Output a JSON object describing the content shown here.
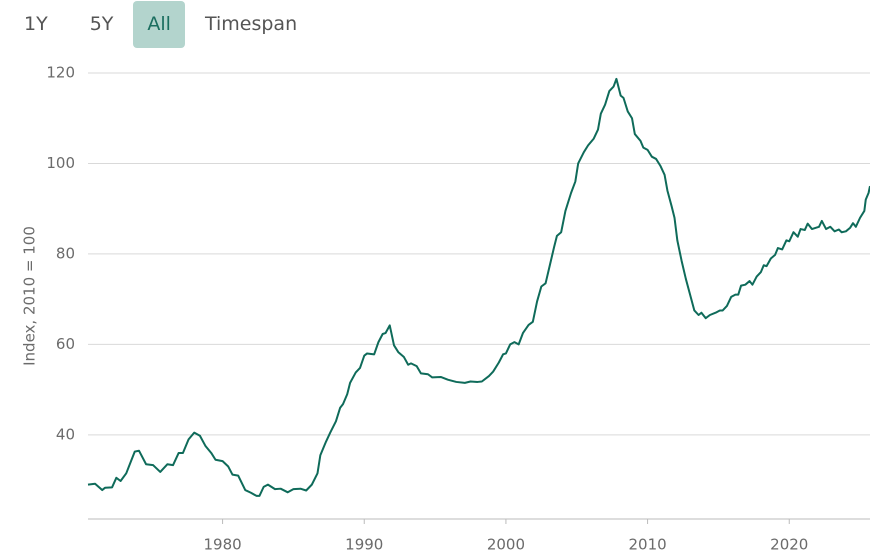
{
  "buttons": [
    "1Y",
    "5Y",
    "All",
    "Timespan"
  ],
  "active_button": 2,
  "chart_data": {
    "type": "line",
    "y_label": "Index, 2010 = 100",
    "color": "#0f6b5a",
    "grid": true,
    "xlim": [
      1970.5,
      2025.7
    ],
    "xticks": [
      1980,
      1990,
      2000,
      2010,
      2020
    ],
    "ylim": [
      21.4,
      120
    ],
    "yticks": [
      40,
      60,
      80,
      100,
      120
    ],
    "x": [
      1970.5,
      1971.0,
      1971.5,
      1971.7,
      1972.2,
      1972.5,
      1972.8,
      1973.2,
      1973.8,
      1974.1,
      1974.6,
      1975.1,
      1975.6,
      1976.1,
      1976.5,
      1976.9,
      1977.2,
      1977.6,
      1978.0,
      1978.4,
      1978.8,
      1979.2,
      1979.5,
      1980.0,
      1980.4,
      1980.7,
      1981.1,
      1981.6,
      1982.0,
      1982.4,
      1982.6,
      1982.9,
      1983.2,
      1983.7,
      1984.1,
      1984.6,
      1985.0,
      1985.5,
      1985.9,
      1986.3,
      1986.7,
      1986.9,
      1987.3,
      1987.6,
      1988.0,
      1988.3,
      1988.5,
      1988.8,
      1989.0,
      1989.4,
      1989.7,
      1990.0,
      1990.2,
      1990.7,
      1991.0,
      1991.3,
      1991.5,
      1991.8,
      1992.1,
      1992.4,
      1992.8,
      1993.1,
      1993.3,
      1993.7,
      1994.0,
      1994.5,
      1994.8,
      1995.4,
      1995.9,
      1996.5,
      1997.1,
      1997.5,
      1998.0,
      1998.3,
      1998.8,
      1999.1,
      1999.5,
      1999.8,
      2000.0,
      2000.3,
      2000.6,
      2000.9,
      2001.2,
      2001.6,
      2001.9,
      2002.2,
      2002.5,
      2002.8,
      2003.1,
      2003.4,
      2003.6,
      2003.9,
      2004.2,
      2004.6,
      2004.9,
      2005.1,
      2005.5,
      2005.8,
      2006.2,
      2006.5,
      2006.7,
      2007.0,
      2007.3,
      2007.6,
      2007.8,
      2008.1,
      2008.3,
      2008.6,
      2008.9,
      2009.1,
      2009.5,
      2009.7,
      2010.0,
      2010.3,
      2010.6,
      2010.9,
      2011.2,
      2011.4,
      2011.7,
      2011.9,
      2012.1,
      2012.4,
      2012.7,
      2013.0,
      2013.3,
      2013.6,
      2013.8,
      2014.1,
      2014.4,
      2014.8,
      2015.1,
      2015.3,
      2015.6,
      2015.9,
      2016.2,
      2016.4,
      2016.6,
      2016.9,
      2017.2,
      2017.4,
      2017.7,
      2018.0,
      2018.2,
      2018.4,
      2018.7,
      2019.0,
      2019.2,
      2019.5,
      2019.8,
      2020.0,
      2020.3,
      2020.6,
      2020.8,
      2021.1,
      2021.3,
      2021.6,
      2021.9,
      2022.1,
      2022.3,
      2022.6,
      2022.9,
      2023.2,
      2023.5,
      2023.7,
      2024.0,
      2024.3,
      2024.5,
      2024.7,
      2025.0,
      2025.3,
      2025.4,
      2025.6,
      2025.7
    ],
    "values": [
      29,
      29.2,
      27.8,
      28.3,
      28.4,
      30.5,
      29.8,
      31.5,
      36.3,
      36.5,
      33.5,
      33.3,
      31.8,
      33.5,
      33.3,
      36,
      36,
      39,
      40.5,
      39.8,
      37.5,
      36,
      34.5,
      34.2,
      33,
      31.2,
      31,
      27.8,
      27.2,
      26.5,
      26.5,
      28.5,
      29,
      28,
      28.1,
      27.3,
      28,
      28.1,
      27.7,
      29,
      31.5,
      35.5,
      38.5,
      40.5,
      43,
      46,
      46.8,
      49,
      51.5,
      53.8,
      54.8,
      57.5,
      58,
      57.8,
      60.5,
      62.3,
      62.5,
      64.2,
      59.8,
      58.3,
      57.2,
      55.5,
      55.8,
      55.2,
      53.6,
      53.4,
      52.7,
      52.8,
      52.2,
      51.7,
      51.5,
      51.8,
      51.7,
      51.8,
      53,
      54,
      56,
      57.8,
      58,
      60,
      60.5,
      60,
      62.5,
      64.3,
      65,
      69.5,
      72.8,
      73.5,
      77.5,
      81.5,
      84,
      84.8,
      89.5,
      93.5,
      96,
      100,
      102.5,
      104,
      105.5,
      107.5,
      111,
      113,
      116,
      117,
      118.7,
      115,
      114.5,
      111.5,
      110,
      106.5,
      105,
      103.5,
      103,
      101.5,
      101,
      99.5,
      97.5,
      94,
      90.5,
      88,
      83,
      78.5,
      74.5,
      71,
      67.5,
      66.5,
      67,
      65.8,
      66.5,
      67,
      67.5,
      67.5,
      68.5,
      70.5,
      71,
      71,
      73,
      73.2,
      74,
      73.2,
      75,
      76,
      77.5,
      77.3,
      79,
      79.8,
      81.3,
      81,
      83,
      82.8,
      84.8,
      83.8,
      85.5,
      85.3,
      86.7,
      85.5,
      85.8,
      86,
      87.3,
      85.5,
      86,
      85,
      85.4,
      84.8,
      85,
      85.8,
      86.8,
      86,
      88,
      89.5,
      92,
      93.5,
      95
    ]
  }
}
